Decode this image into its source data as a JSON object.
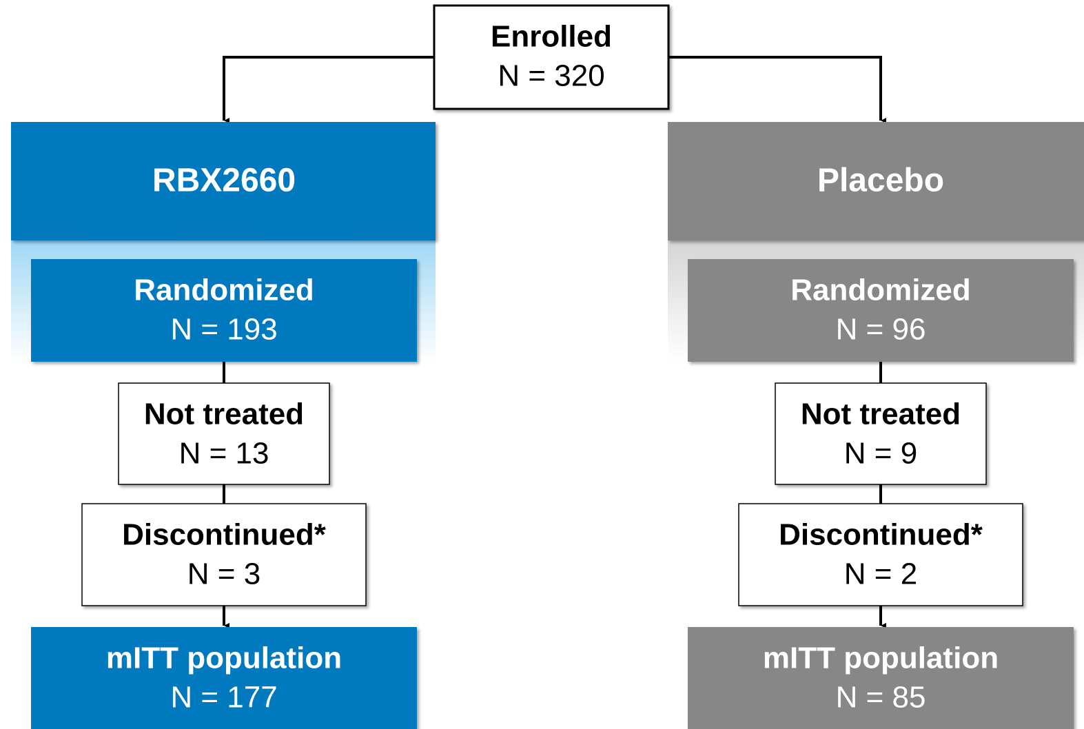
{
  "enrolled": {
    "label": "Enrolled",
    "count": "N = 320"
  },
  "arms": [
    {
      "name": "RBX2660",
      "steps": [
        {
          "label": "Randomized",
          "count": "N = 193"
        },
        {
          "label": "Not treated",
          "count": "N = 13"
        },
        {
          "label": "Discontinued*",
          "count": "N = 3"
        },
        {
          "label": "mITT population",
          "count": "N = 177"
        }
      ]
    },
    {
      "name": "Placebo",
      "steps": [
        {
          "label": "Randomized",
          "count": "N = 96"
        },
        {
          "label": "Not treated",
          "count": "N = 9"
        },
        {
          "label": "Discontinued*",
          "count": "N = 2"
        },
        {
          "label": "mITT population",
          "count": "N = 85"
        }
      ]
    }
  ]
}
